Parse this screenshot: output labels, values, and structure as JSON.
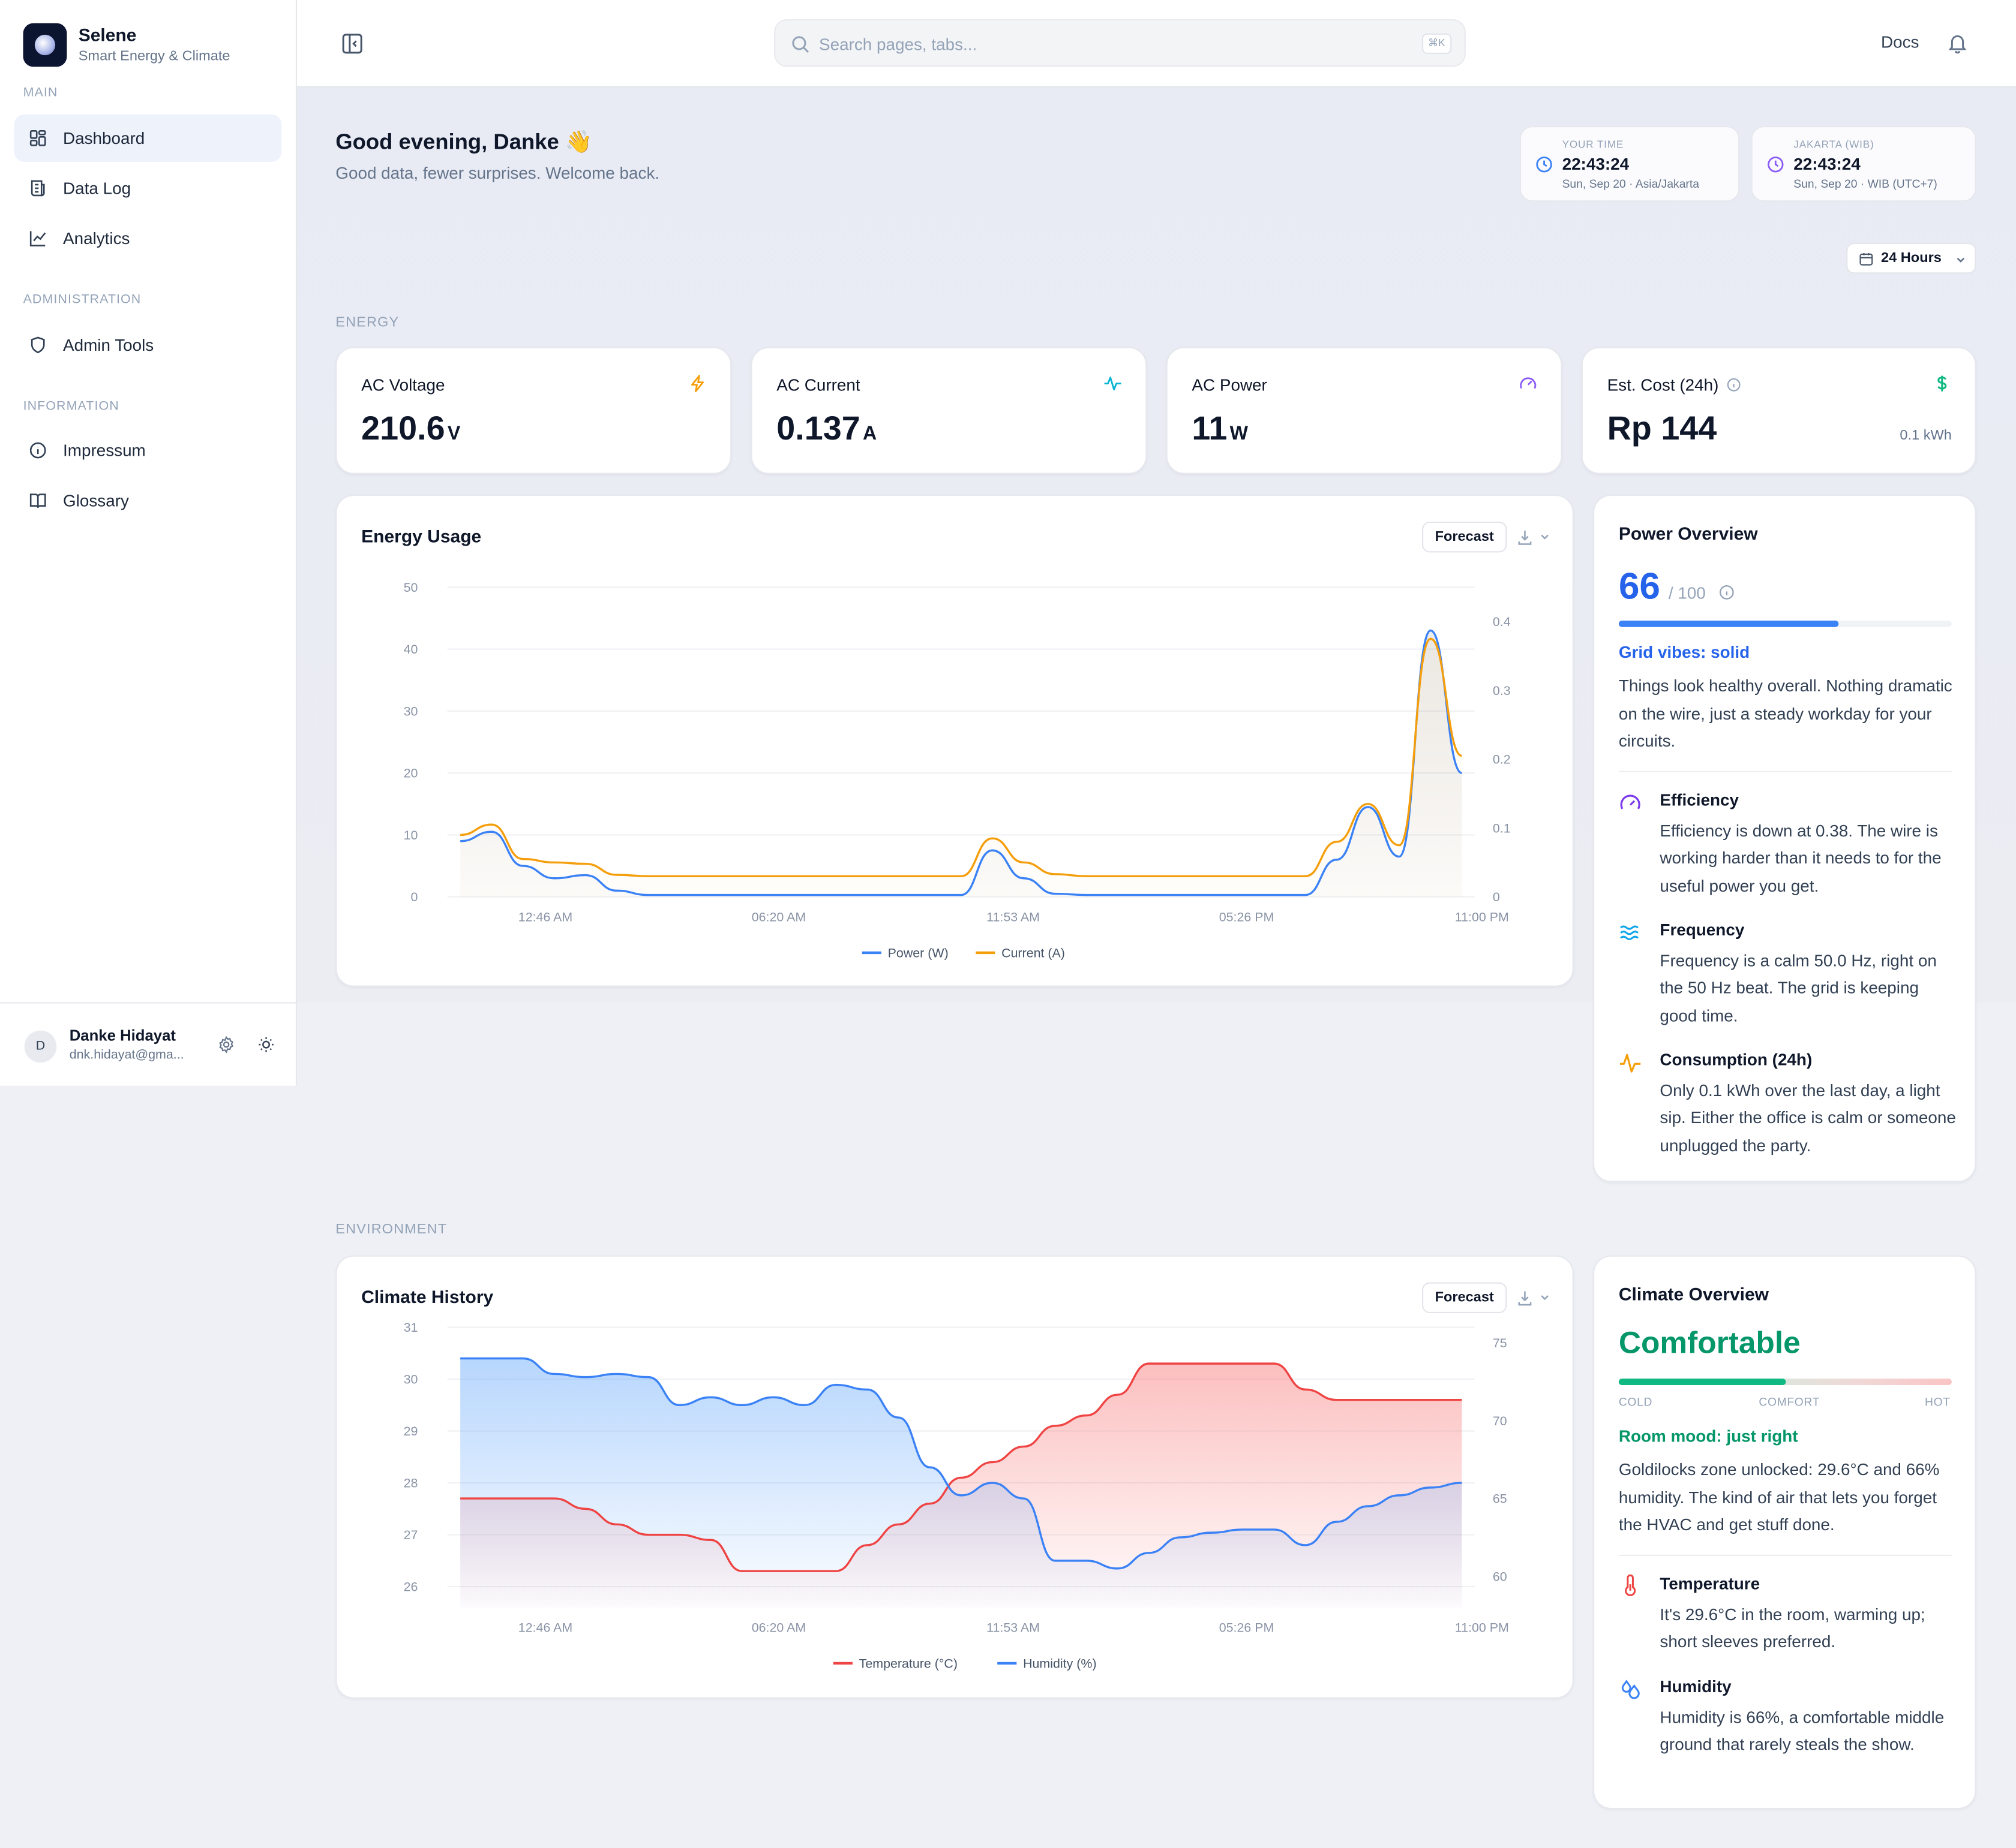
{
  "app": {
    "name": "Selene",
    "subtitle": "Smart Energy & Climate"
  },
  "sidebar": {
    "sections": [
      {
        "label": "MAIN",
        "items": [
          {
            "label": "Dashboard",
            "icon": "dashboard-icon",
            "active": true
          },
          {
            "label": "Data Log",
            "icon": "data-log-icon"
          },
          {
            "label": "Analytics",
            "icon": "analytics-icon"
          }
        ]
      },
      {
        "label": "ADMINISTRATION",
        "items": [
          {
            "label": "Admin Tools",
            "icon": "shield-icon"
          }
        ]
      },
      {
        "label": "INFORMATION",
        "items": [
          {
            "label": "Impressum",
            "icon": "info-icon"
          },
          {
            "label": "Glossary",
            "icon": "book-icon"
          }
        ]
      }
    ],
    "user": {
      "initial": "D",
      "name": "Danke Hidayat",
      "email": "dnk.hidayat@gma..."
    }
  },
  "topbar": {
    "search_placeholder": "Search pages, tabs...",
    "shortcut": "⌘K",
    "docs_label": "Docs"
  },
  "greeting": {
    "title": "Good evening, Danke 👋",
    "subtitle": "Good data, fewer surprises. Welcome back."
  },
  "clocks": [
    {
      "label": "YOUR TIME",
      "time": "22:43:24",
      "meta": "Sun, Sep 20 · Asia/Jakarta",
      "color": "#3b82f6"
    },
    {
      "label": "JAKARTA (WIB)",
      "time": "22:43:24",
      "meta": "Sun, Sep 20 · WIB (UTC+7)",
      "color": "#8b5cf6"
    }
  ],
  "range": {
    "label": "24 Hours"
  },
  "sections": {
    "energy": "ENERGY",
    "environment": "ENVIRONMENT"
  },
  "metrics": [
    {
      "title": "AC Voltage",
      "value": "210.6",
      "unit": "V",
      "icon": "lightning-icon",
      "color": "#f59e0b"
    },
    {
      "title": "AC Current",
      "value": "0.137",
      "unit": "A",
      "icon": "pulse-icon",
      "color": "#06b6d4"
    },
    {
      "title": "AC Power",
      "value": "11",
      "unit": "W",
      "icon": "gauge-icon",
      "color": "#8b5cf6"
    },
    {
      "title": "Est. Cost (24h)",
      "value": "Rp 144",
      "unit": "",
      "foot": "0.1 kWh",
      "icon": "dollar-icon",
      "color": "#10b981"
    }
  ],
  "energy_chart": {
    "title": "Energy Usage",
    "forecast_label": "Forecast"
  },
  "climate_chart": {
    "title": "Climate History",
    "forecast_label": "Forecast"
  },
  "chart_data": [
    {
      "type": "line",
      "title": "Energy Usage",
      "x_ticks": [
        "12:46 AM",
        "06:20 AM",
        "11:53 AM",
        "05:26 PM",
        "11:00 PM"
      ],
      "y_left": {
        "ticks": [
          0,
          10,
          20,
          30,
          40,
          50
        ],
        "range": [
          0,
          50
        ]
      },
      "y_right": {
        "ticks": [
          0,
          0.1,
          0.2,
          0.3,
          0.4
        ],
        "range": [
          0,
          0.45
        ]
      },
      "samples": 33,
      "series": [
        {
          "name": "Power (W)",
          "axis": "left",
          "color": "#3b82f6",
          "values": [
            9,
            10.5,
            5,
            3,
            3.5,
            1,
            0.3,
            0.3,
            0.3,
            0.3,
            0.3,
            0.3,
            0.3,
            0.3,
            0.3,
            0.3,
            0.3,
            7.5,
            3,
            0.5,
            0.3,
            0.3,
            0.3,
            0.3,
            0.3,
            0.3,
            0.3,
            0.3,
            6,
            14.5,
            6.5,
            43,
            20
          ]
        },
        {
          "name": "Current (A)",
          "axis": "right",
          "color": "#f59e0b",
          "values": [
            0.09,
            0.105,
            0.055,
            0.05,
            0.048,
            0.032,
            0.03,
            0.03,
            0.03,
            0.03,
            0.03,
            0.03,
            0.03,
            0.03,
            0.03,
            0.03,
            0.03,
            0.085,
            0.05,
            0.033,
            0.03,
            0.03,
            0.03,
            0.03,
            0.03,
            0.03,
            0.03,
            0.03,
            0.08,
            0.135,
            0.075,
            0.375,
            0.205
          ]
        }
      ]
    },
    {
      "type": "area",
      "title": "Climate History",
      "x_ticks": [
        "12:46 AM",
        "06:20 AM",
        "11:53 AM",
        "05:26 PM",
        "11:00 PM"
      ],
      "y_left": {
        "ticks": [
          26,
          27,
          28,
          29,
          30,
          31
        ],
        "range": [
          25.6,
          31
        ]
      },
      "y_right": {
        "ticks": [
          60,
          65,
          70,
          75
        ],
        "range": [
          58,
          76
        ]
      },
      "samples": 33,
      "series": [
        {
          "name": "Temperature (°C)",
          "axis": "left",
          "color": "#ef4444",
          "values": [
            27.7,
            27.7,
            27.7,
            27.7,
            27.5,
            27.2,
            27.0,
            27.0,
            26.9,
            26.3,
            26.3,
            26.3,
            26.3,
            26.8,
            27.2,
            27.6,
            28.1,
            28.4,
            28.7,
            29.1,
            29.3,
            29.7,
            30.3,
            30.3,
            30.3,
            30.3,
            30.3,
            29.8,
            29.6,
            29.6,
            29.6,
            29.6,
            29.6
          ]
        },
        {
          "name": "Humidity (%)",
          "axis": "right",
          "color": "#3b82f6",
          "values": [
            74,
            74,
            74,
            73,
            72.8,
            73,
            72.8,
            71,
            71.5,
            71,
            71.5,
            71,
            72.3,
            72,
            70.2,
            67,
            65.2,
            66,
            65,
            61,
            61,
            60.5,
            61.5,
            62.5,
            62.8,
            63,
            63,
            62,
            63.5,
            64.5,
            65.2,
            65.7,
            66
          ]
        }
      ]
    }
  ],
  "power_overview": {
    "title": "Power Overview",
    "score": "66",
    "score_max": "/ 100",
    "score_value": 66,
    "accent": "#2563eb",
    "status": "Grid vibes: solid",
    "summary": "Things look healthy overall. Nothing dramatic on the wire, just a steady workday for your circuits.",
    "items": [
      {
        "title": "Efficiency",
        "text": "Efficiency is down at 0.38. The wire is working harder than it needs to for the useful power you get.",
        "icon": "gauge-icon",
        "color": "#7c3aed"
      },
      {
        "title": "Frequency",
        "text": "Frequency is a calm 50.0 Hz, right on the 50 Hz beat. The grid is keeping good time.",
        "icon": "wave-icon",
        "color": "#0ea5e9"
      },
      {
        "title": "Consumption (24h)",
        "text": "Only 0.1 kWh over the last day, a light sip. Either the office is calm or someone unplugged the party.",
        "icon": "pulse-icon",
        "color": "#f59e0b"
      }
    ]
  },
  "climate_overview": {
    "title": "Climate Overview",
    "status_big": "Comfortable",
    "accent": "#10b981",
    "scale": {
      "cold": "COLD",
      "comfort": "COMFORT",
      "hot": "HOT",
      "level": 0.5
    },
    "mood": "Room mood: just right",
    "summary": "Goldilocks zone unlocked: 29.6°C and 66% humidity. The kind of air that lets you forget the HVAC and get stuff done.",
    "items": [
      {
        "title": "Temperature",
        "text": "It's 29.6°C in the room, warming up; short sleeves preferred.",
        "icon": "thermometer-icon",
        "color": "#ef4444"
      },
      {
        "title": "Humidity",
        "text": "Humidity is 66%, a comfortable middle ground that rarely steals the show.",
        "icon": "droplets-icon",
        "color": "#3b82f6"
      }
    ]
  }
}
